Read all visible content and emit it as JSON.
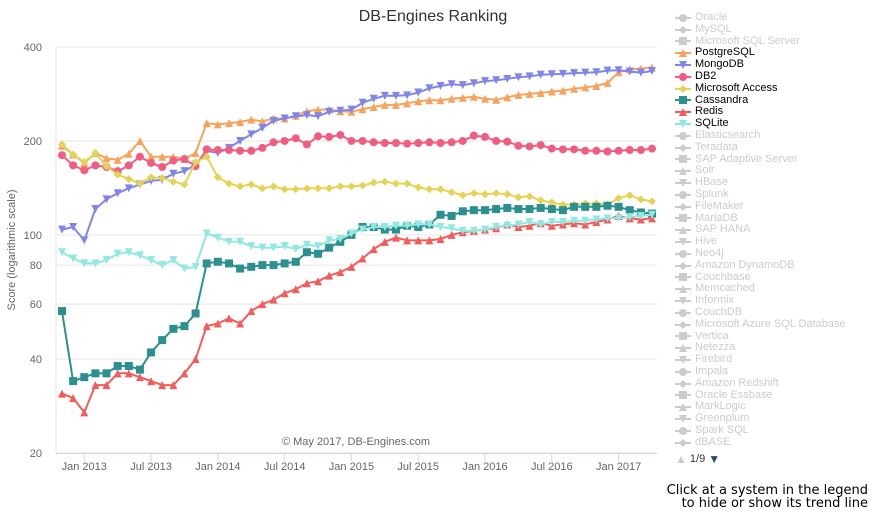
{
  "chart_data": {
    "type": "line",
    "title": "DB-Engines Ranking",
    "xlabel": "",
    "ylabel": "Score (logarithmic scale)",
    "yscale": "log",
    "ylim": [
      20,
      400
    ],
    "yticks": [
      20,
      40,
      60,
      80,
      100,
      200,
      400
    ],
    "xticks": [
      "Jan 2013",
      "Jul 2013",
      "Jan 2014",
      "Jul 2014",
      "Jan 2015",
      "Jul 2015",
      "Jan 2016",
      "Jul 2016",
      "Jan 2017"
    ],
    "x_start": "Nov 2012",
    "x_end": "May 2017",
    "grid": true,
    "credit": "© May 2017, DB-Engines.com",
    "series": [
      {
        "name": "PostgreSQL",
        "color": "#f7a35c",
        "marker": "triangle",
        "values": [
          193,
          181,
          170,
          183,
          176,
          174,
          182,
          200,
          178,
          178,
          178,
          175,
          183,
          228,
          226,
          228,
          230,
          234,
          231,
          236,
          236,
          241,
          249,
          252,
          252,
          249,
          248,
          253,
          257,
          261,
          261,
          264,
          268,
          270,
          270,
          273,
          275,
          277,
          273,
          271,
          276,
          281,
          283,
          285,
          288,
          290,
          294,
          297,
          300,
          307,
          332,
          339,
          341,
          344
        ]
      },
      {
        "name": "MongoDB",
        "color": "#8085e9",
        "marker": "triangle-down",
        "values": [
          104,
          106,
          96,
          121,
          130,
          136,
          141,
          145,
          149,
          150,
          157,
          160,
          168,
          186,
          183,
          190,
          200,
          210,
          220,
          232,
          236,
          240,
          242,
          240,
          248,
          250,
          252,
          265,
          273,
          279,
          279,
          280,
          286,
          295,
          300,
          304,
          302,
          306,
          311,
          313,
          316,
          320,
          322,
          326,
          327,
          328,
          330,
          331,
          332,
          336,
          337,
          334,
          331,
          335
        ]
      },
      {
        "name": "DB2",
        "color": "#f15c80",
        "marker": "circle",
        "values": [
          180,
          167,
          161,
          167,
          165,
          160,
          167,
          178,
          170,
          165,
          173,
          175,
          166,
          188,
          187,
          187,
          186,
          186,
          190,
          198,
          200,
          204,
          195,
          207,
          206,
          209,
          200,
          200,
          198,
          197,
          197,
          196,
          197,
          198,
          197,
          198,
          200,
          208,
          206,
          200,
          199,
          193,
          192,
          194,
          189,
          188,
          188,
          186,
          186,
          185,
          186,
          187,
          187,
          189
        ]
      },
      {
        "name": "Microsoft Access",
        "color": "#e4d354",
        "marker": "diamond",
        "values": [
          195,
          181,
          171,
          183,
          166,
          156,
          151,
          146,
          153,
          152,
          148,
          145,
          171,
          178,
          153,
          146,
          143,
          145,
          141,
          143,
          140,
          140,
          141,
          141,
          141,
          143,
          143,
          144,
          147,
          148,
          146,
          146,
          142,
          140,
          140,
          137,
          134,
          136,
          135,
          136,
          135,
          132,
          133,
          129,
          127,
          125,
          125,
          126,
          126,
          125,
          131,
          134,
          130,
          128
        ]
      },
      {
        "name": "Cassandra",
        "color": "#2b908f",
        "marker": "square",
        "values": [
          57,
          34,
          35,
          36,
          36,
          38,
          38,
          37,
          42,
          46,
          50,
          51,
          56,
          81,
          82,
          81,
          78,
          79,
          80,
          80,
          81,
          82,
          88,
          87,
          91,
          95,
          100,
          106,
          106,
          104,
          104,
          107,
          106,
          108,
          116,
          115,
          119,
          120,
          120,
          121,
          122,
          121,
          121,
          122,
          121,
          120,
          123,
          123,
          123,
          124,
          123,
          120,
          118,
          117
        ]
      },
      {
        "name": "Redis",
        "color": "#f45b5b",
        "marker": "triangle",
        "values": [
          31,
          30,
          27,
          33,
          33,
          36,
          36,
          35,
          34,
          33,
          33,
          36,
          40,
          51,
          52,
          54,
          52,
          57,
          60,
          62,
          65,
          67,
          70,
          71,
          74,
          76,
          79,
          84,
          90,
          95,
          98,
          96,
          96,
          96,
          97,
          100,
          102,
          103,
          104,
          105,
          108,
          106,
          107,
          109,
          107,
          108,
          109,
          108,
          110,
          112,
          115,
          113,
          112,
          113
        ]
      },
      {
        "name": "SQLite",
        "color": "#91e8e1",
        "marker": "triangle-down",
        "values": [
          88,
          84,
          81,
          81,
          83,
          87,
          88,
          86,
          83,
          80,
          83,
          78,
          79,
          101,
          98,
          95,
          95,
          92,
          91,
          91,
          92,
          90,
          93,
          92,
          96,
          97,
          101,
          104,
          106,
          106,
          107,
          107,
          108,
          108,
          106,
          105,
          103,
          103,
          104,
          106,
          107,
          108,
          110,
          108,
          110,
          110,
          111,
          111,
          112,
          113,
          113,
          114,
          115,
          116
        ]
      }
    ]
  },
  "legend": {
    "items": [
      {
        "name": "Oracle",
        "color": "#cccccc",
        "marker": "circle",
        "visible": false
      },
      {
        "name": "MySQL",
        "color": "#cccccc",
        "marker": "diamond",
        "visible": false
      },
      {
        "name": "Microsoft SQL Server",
        "color": "#cccccc",
        "marker": "square",
        "visible": false
      },
      {
        "name": "PostgreSQL",
        "color": "#f7a35c",
        "marker": "triangle",
        "visible": true
      },
      {
        "name": "MongoDB",
        "color": "#8085e9",
        "marker": "triangle-down",
        "visible": true
      },
      {
        "name": "DB2",
        "color": "#f15c80",
        "marker": "circle",
        "visible": true
      },
      {
        "name": "Microsoft Access",
        "color": "#e4d354",
        "marker": "diamond",
        "visible": true
      },
      {
        "name": "Cassandra",
        "color": "#2b908f",
        "marker": "square",
        "visible": true
      },
      {
        "name": "Redis",
        "color": "#f45b5b",
        "marker": "triangle",
        "visible": true
      },
      {
        "name": "SQLite",
        "color": "#91e8e1",
        "marker": "triangle-down",
        "visible": true
      },
      {
        "name": "Elasticsearch",
        "color": "#cccccc",
        "marker": "circle",
        "visible": false
      },
      {
        "name": "Teradata",
        "color": "#cccccc",
        "marker": "diamond",
        "visible": false
      },
      {
        "name": "SAP Adaptive Server",
        "color": "#cccccc",
        "marker": "square",
        "visible": false
      },
      {
        "name": "Solr",
        "color": "#cccccc",
        "marker": "triangle",
        "visible": false
      },
      {
        "name": "HBase",
        "color": "#cccccc",
        "marker": "triangle-down",
        "visible": false
      },
      {
        "name": "Splunk",
        "color": "#cccccc",
        "marker": "circle",
        "visible": false
      },
      {
        "name": "FileMaker",
        "color": "#cccccc",
        "marker": "diamond",
        "visible": false
      },
      {
        "name": "MariaDB",
        "color": "#cccccc",
        "marker": "square",
        "visible": false
      },
      {
        "name": "SAP HANA",
        "color": "#cccccc",
        "marker": "triangle",
        "visible": false
      },
      {
        "name": "Hive",
        "color": "#cccccc",
        "marker": "triangle-down",
        "visible": false
      },
      {
        "name": "Neo4j",
        "color": "#cccccc",
        "marker": "circle",
        "visible": false
      },
      {
        "name": "Amazon DynamoDB",
        "color": "#cccccc",
        "marker": "diamond",
        "visible": false
      },
      {
        "name": "Couchbase",
        "color": "#cccccc",
        "marker": "square",
        "visible": false
      },
      {
        "name": "Memcached",
        "color": "#cccccc",
        "marker": "triangle",
        "visible": false
      },
      {
        "name": "Informix",
        "color": "#cccccc",
        "marker": "triangle-down",
        "visible": false
      },
      {
        "name": "CouchDB",
        "color": "#cccccc",
        "marker": "circle",
        "visible": false
      },
      {
        "name": "Microsoft Azure SQL Database",
        "color": "#cccccc",
        "marker": "diamond",
        "visible": false
      },
      {
        "name": "Vertica",
        "color": "#cccccc",
        "marker": "square",
        "visible": false
      },
      {
        "name": "Netezza",
        "color": "#cccccc",
        "marker": "triangle",
        "visible": false
      },
      {
        "name": "Firebird",
        "color": "#cccccc",
        "marker": "triangle-down",
        "visible": false
      },
      {
        "name": "Impala",
        "color": "#cccccc",
        "marker": "circle",
        "visible": false
      },
      {
        "name": "Amazon Redshift",
        "color": "#cccccc",
        "marker": "diamond",
        "visible": false
      },
      {
        "name": "Oracle Essbase",
        "color": "#cccccc",
        "marker": "square",
        "visible": false
      },
      {
        "name": "MarkLogic",
        "color": "#cccccc",
        "marker": "triangle",
        "visible": false
      },
      {
        "name": "Greenplum",
        "color": "#cccccc",
        "marker": "triangle-down",
        "visible": false
      },
      {
        "name": "Spark SQL",
        "color": "#cccccc",
        "marker": "circle",
        "visible": false
      },
      {
        "name": "dBASE",
        "color": "#cccccc",
        "marker": "diamond",
        "visible": false
      }
    ],
    "pager": {
      "up_icon": "▲",
      "page": "1/9",
      "down_icon": "▼"
    }
  },
  "hint": {
    "line1": "Click at a system in the legend",
    "line2": "to hide or show its trend line"
  }
}
